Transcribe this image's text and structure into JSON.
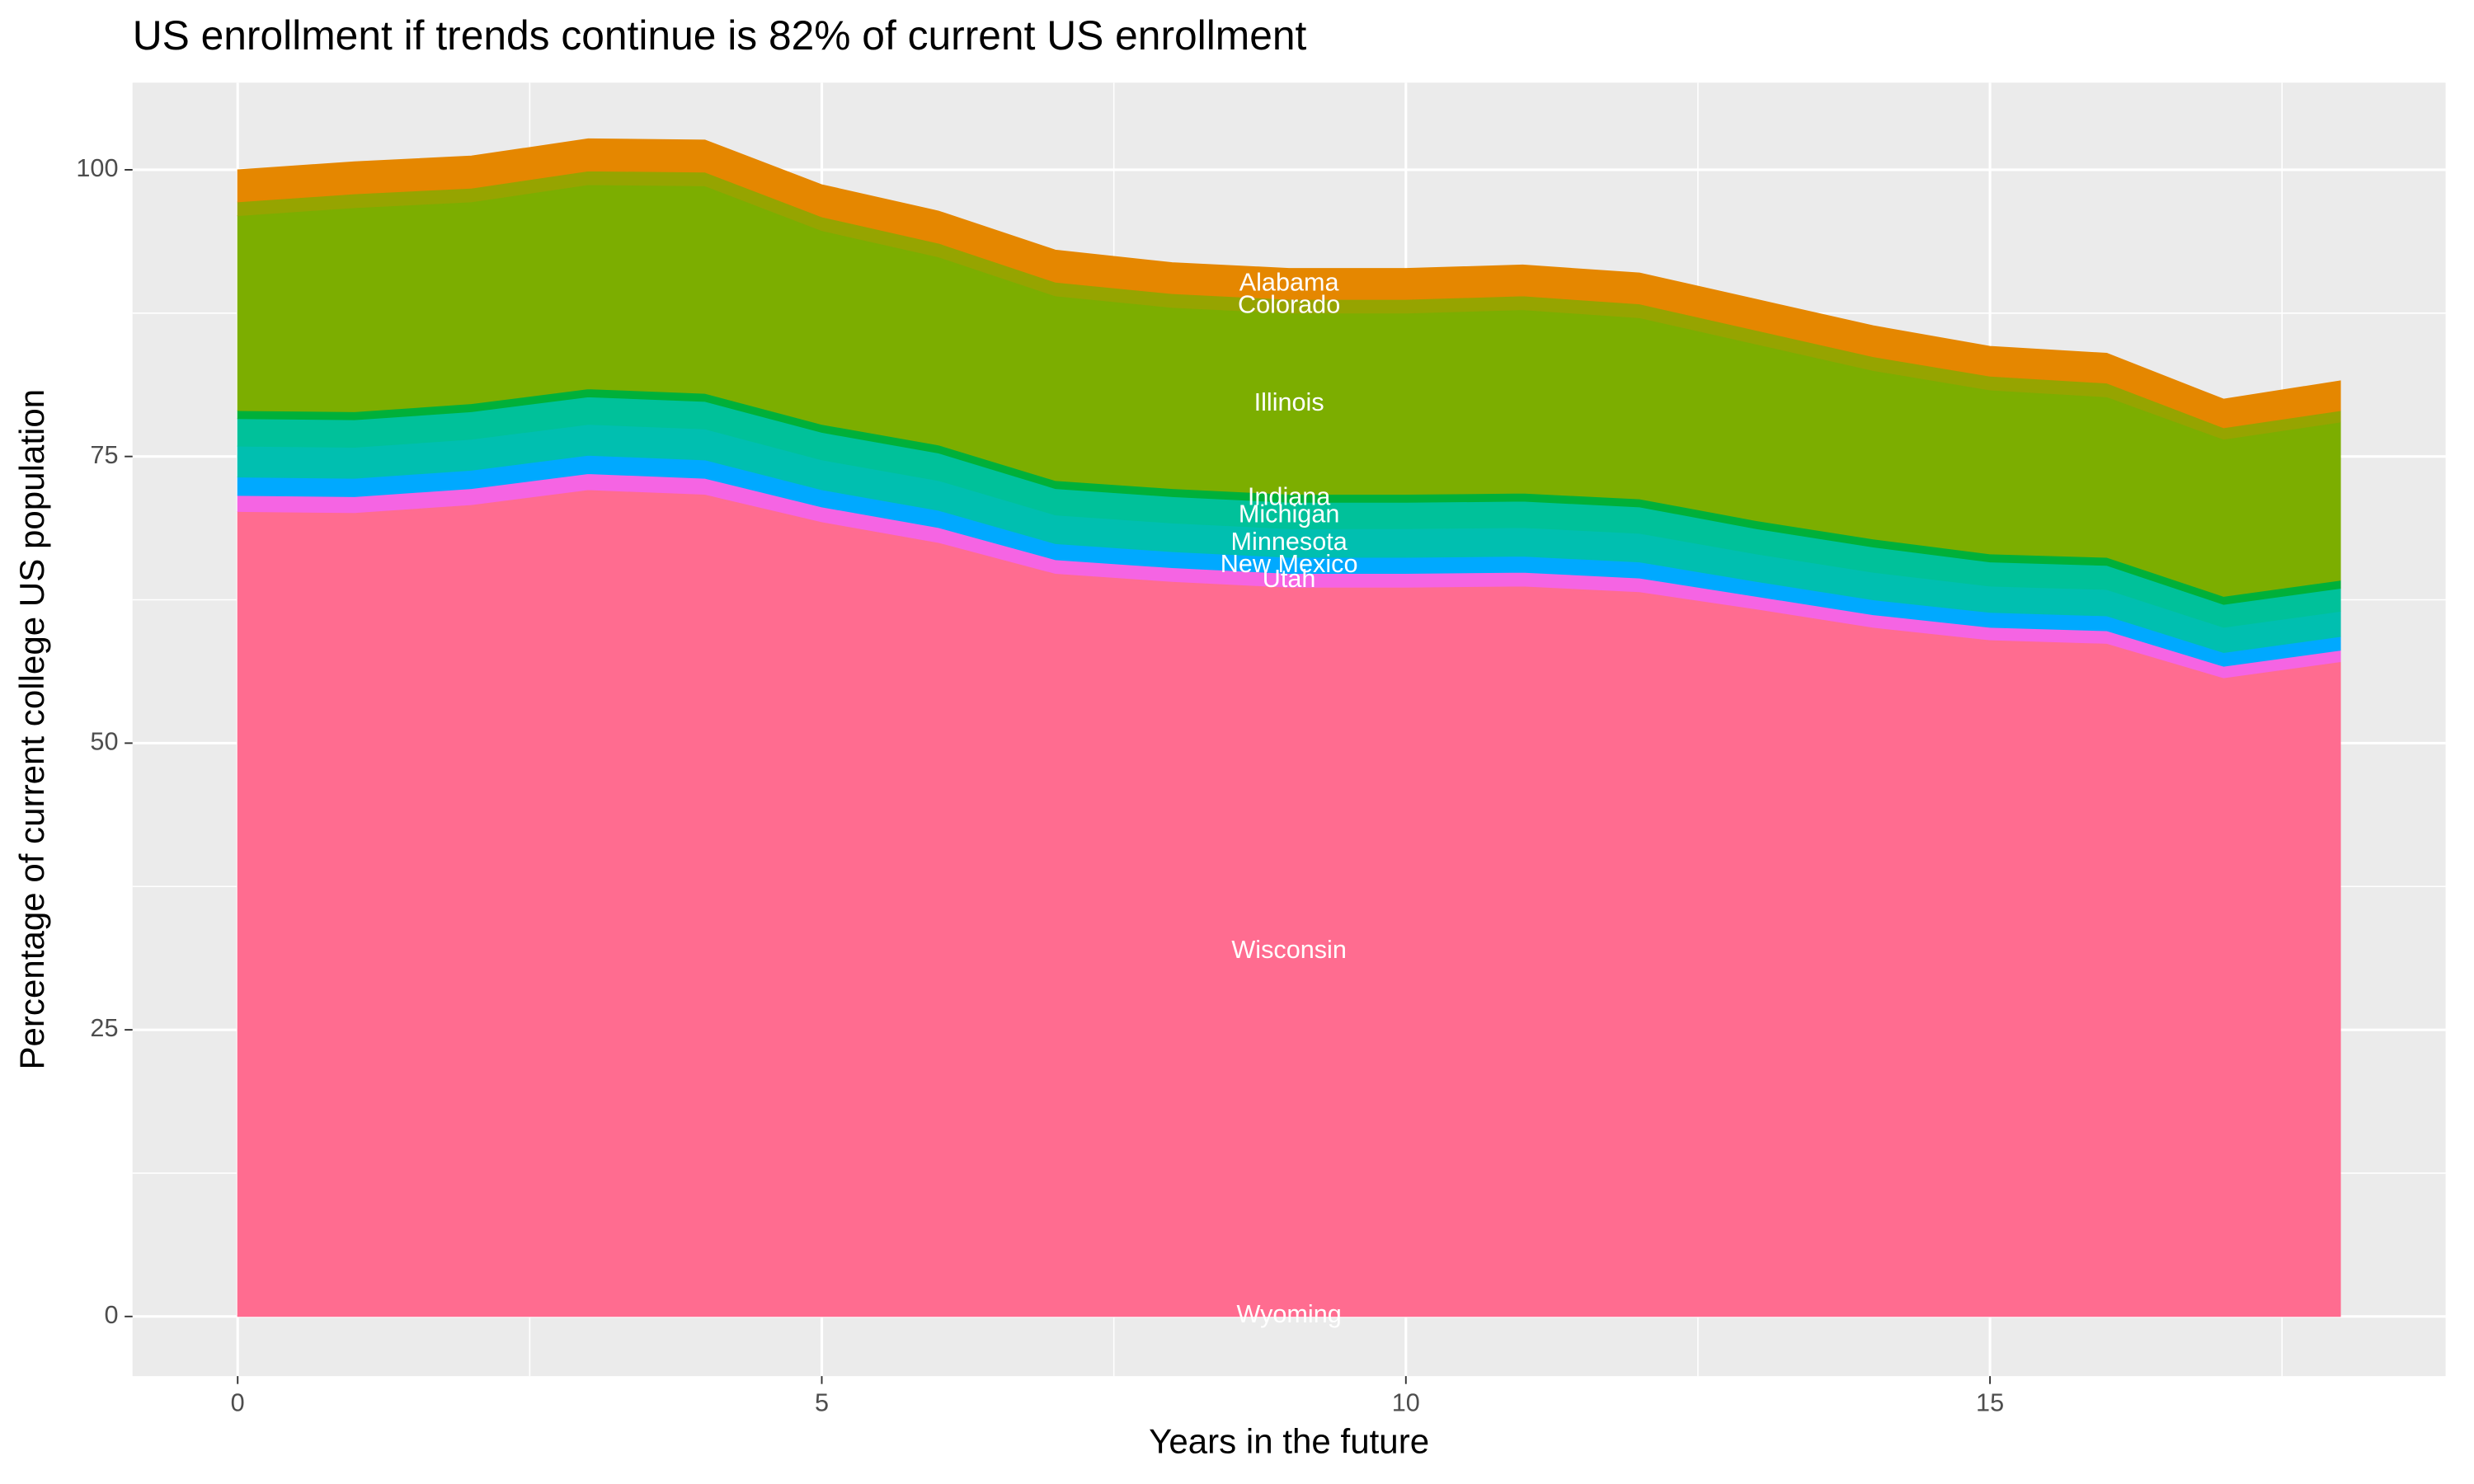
{
  "chart_data": {
    "type": "stacked_area",
    "title": "US enrollment if trends continue is 82% of current US enrollment",
    "x_label": "Years in the future",
    "y_label": "Percentage of current college US population",
    "x": [
      0,
      1,
      2,
      3,
      4,
      5,
      6,
      7,
      8,
      9,
      10,
      11,
      12,
      13,
      14,
      15,
      16,
      17,
      18
    ],
    "series": [
      {
        "name": "Wyoming",
        "color": "#FF6C91",
        "values": [
          0.1,
          0.1,
          0.1,
          0.1,
          0.1,
          0.1,
          0.1,
          0.1,
          0.1,
          0.1,
          0.1,
          0.1,
          0.1,
          0.1,
          0.1,
          0.1,
          0.1,
          0.1,
          0.1
        ]
      },
      {
        "name": "Wisconsin",
        "color": "#FF6C90",
        "values": [
          70.1,
          70.0,
          70.7,
          72.0,
          71.6,
          69.2,
          67.4,
          64.7,
          64.0,
          63.5,
          63.5,
          63.6,
          63.1,
          61.6,
          60.0,
          58.9,
          58.6,
          55.6,
          57.0
        ]
      },
      {
        "name": "Utah",
        "color": "#F564E3",
        "values": [
          1.4,
          1.4,
          1.4,
          1.4,
          1.4,
          1.3,
          1.3,
          1.2,
          1.2,
          1.2,
          1.2,
          1.2,
          1.2,
          1.1,
          1.1,
          1.1,
          1.1,
          1.0,
          1.0
        ]
      },
      {
        "name": "New Mexico",
        "color": "#00A9FF",
        "values": [
          1.6,
          1.6,
          1.6,
          1.6,
          1.6,
          1.5,
          1.5,
          1.4,
          1.4,
          1.4,
          1.4,
          1.4,
          1.4,
          1.3,
          1.3,
          1.3,
          1.3,
          1.2,
          1.2
        ]
      },
      {
        "name": "Minnesota",
        "color": "#00BFB0",
        "values": [
          2.7,
          2.7,
          2.7,
          2.7,
          2.7,
          2.6,
          2.6,
          2.5,
          2.5,
          2.5,
          2.5,
          2.5,
          2.5,
          2.4,
          2.4,
          2.3,
          2.3,
          2.2,
          2.2
        ]
      },
      {
        "name": "Michigan",
        "color": "#00C19A",
        "values": [
          2.4,
          2.4,
          2.4,
          2.4,
          2.4,
          2.4,
          2.4,
          2.3,
          2.3,
          2.3,
          2.3,
          2.3,
          2.3,
          2.2,
          2.2,
          2.1,
          2.1,
          2.0,
          2.0
        ]
      },
      {
        "name": "Indiana",
        "color": "#00B03A",
        "values": [
          0.7,
          0.7,
          0.7,
          0.7,
          0.7,
          0.7,
          0.7,
          0.7,
          0.7,
          0.7,
          0.7,
          0.7,
          0.7,
          0.7,
          0.7,
          0.7,
          0.7,
          0.7,
          0.7
        ]
      },
      {
        "name": "Illinois",
        "color": "#7CAE00",
        "values": [
          17.0,
          17.8,
          17.6,
          17.8,
          18.1,
          16.9,
          16.4,
          16.1,
          15.8,
          15.8,
          15.8,
          16.0,
          15.8,
          15.4,
          14.7,
          14.3,
          14.0,
          13.7,
          13.8
        ]
      },
      {
        "name": "Colorado",
        "color": "#96A400",
        "values": [
          1.2,
          1.2,
          1.2,
          1.2,
          1.2,
          1.2,
          1.2,
          1.2,
          1.2,
          1.2,
          1.2,
          1.2,
          1.2,
          1.2,
          1.2,
          1.2,
          1.2,
          1.0,
          1.0
        ]
      },
      {
        "name": "Alabama",
        "color": "#E58700",
        "values": [
          2.8,
          2.8,
          2.8,
          2.8,
          2.8,
          2.8,
          2.8,
          2.8,
          2.7,
          2.7,
          2.7,
          2.7,
          2.7,
          2.7,
          2.7,
          2.6,
          2.6,
          2.5,
          2.6
        ]
      }
    ],
    "xlim": [
      -0.9,
      18.9
    ],
    "ylim": [
      -5.2,
      107.6
    ],
    "xticks": [
      0,
      5,
      10,
      15
    ],
    "yticks": [
      0,
      25,
      50,
      75,
      100
    ],
    "grid": true
  }
}
